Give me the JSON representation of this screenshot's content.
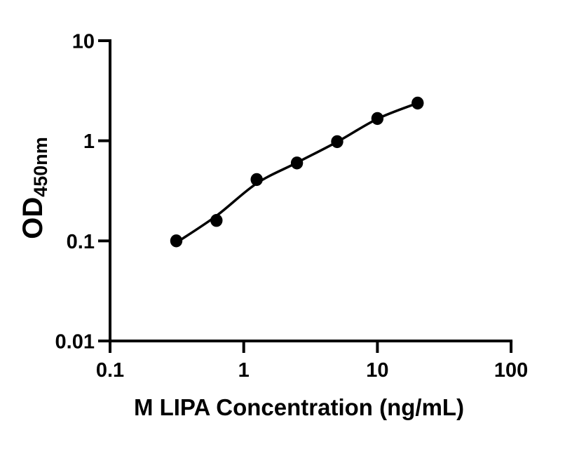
{
  "figure": {
    "background": "#ffffff"
  },
  "chart_data": {
    "type": "scatter",
    "title": "",
    "xlabel": "M LIPA Concentration (ng/mL)",
    "ylabel_main": "OD",
    "ylabel_sub": "450nm",
    "x_scale": "log",
    "y_scale": "log",
    "xlim": [
      0.1,
      100
    ],
    "ylim": [
      0.01,
      10
    ],
    "grid": false,
    "legend": false,
    "axis_color": "#000000",
    "marker_color": "#000000",
    "line_color": "#000000",
    "x_ticks": [
      {
        "value": 0.1,
        "label": "0.1"
      },
      {
        "value": 1,
        "label": "1"
      },
      {
        "value": 10,
        "label": "10"
      },
      {
        "value": 100,
        "label": "100"
      }
    ],
    "y_ticks": [
      {
        "value": 0.01,
        "label": "0.01"
      },
      {
        "value": 0.1,
        "label": "0.1"
      },
      {
        "value": 1,
        "label": "1"
      },
      {
        "value": 10,
        "label": "10"
      }
    ],
    "series": [
      {
        "name": "standard-points",
        "marker": "filled-circle",
        "x": [
          0.313,
          0.625,
          1.25,
          2.5,
          5,
          10,
          20
        ],
        "y": [
          0.1,
          0.16,
          0.41,
          0.6,
          0.98,
          1.67,
          2.38
        ]
      }
    ],
    "fit_curve": {
      "name": "fitted-standard-curve",
      "x": [
        0.313,
        0.625,
        1.25,
        2.5,
        5,
        10,
        20
      ],
      "y": [
        0.096,
        0.178,
        0.375,
        0.605,
        0.975,
        1.655,
        2.38
      ]
    }
  }
}
